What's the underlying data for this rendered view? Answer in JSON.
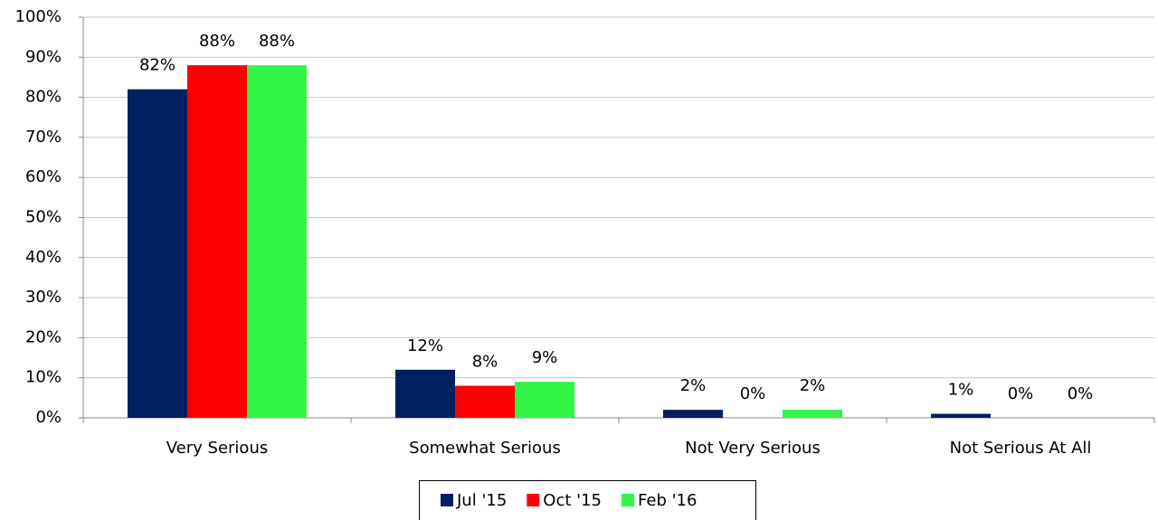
{
  "chart_data": {
    "type": "bar",
    "categories": [
      "Very Serious",
      "Somewhat Serious",
      "Not Very Serious",
      "Not Serious At All"
    ],
    "series": [
      {
        "name": "Jul '15",
        "color": "#002060",
        "values": [
          82,
          12,
          2,
          1
        ],
        "value_labels": [
          "82%",
          "12%",
          "2%",
          "1%"
        ]
      },
      {
        "name": "Oct '15",
        "color": "#ff0000",
        "values": [
          88,
          8,
          0,
          0
        ],
        "value_labels": [
          "88%",
          "8%",
          "0%",
          "0%"
        ]
      },
      {
        "name": "Feb '16",
        "color": "#33f545",
        "values": [
          88,
          9,
          2,
          0
        ],
        "value_labels": [
          "88%",
          "9%",
          "2%",
          "0%"
        ]
      }
    ],
    "ylim": [
      0,
      100
    ],
    "yticks": [
      {
        "value": 0,
        "label": "0%"
      },
      {
        "value": 10,
        "label": "10%"
      },
      {
        "value": 20,
        "label": "20%"
      },
      {
        "value": 30,
        "label": "30%"
      },
      {
        "value": 40,
        "label": "40%"
      },
      {
        "value": 50,
        "label": "50%"
      },
      {
        "value": 60,
        "label": "60%"
      },
      {
        "value": 70,
        "label": "70%"
      },
      {
        "value": 80,
        "label": "80%"
      },
      {
        "value": 90,
        "label": "90%"
      },
      {
        "value": 100,
        "label": "100%"
      }
    ],
    "grid": true,
    "legend": "bottom"
  }
}
